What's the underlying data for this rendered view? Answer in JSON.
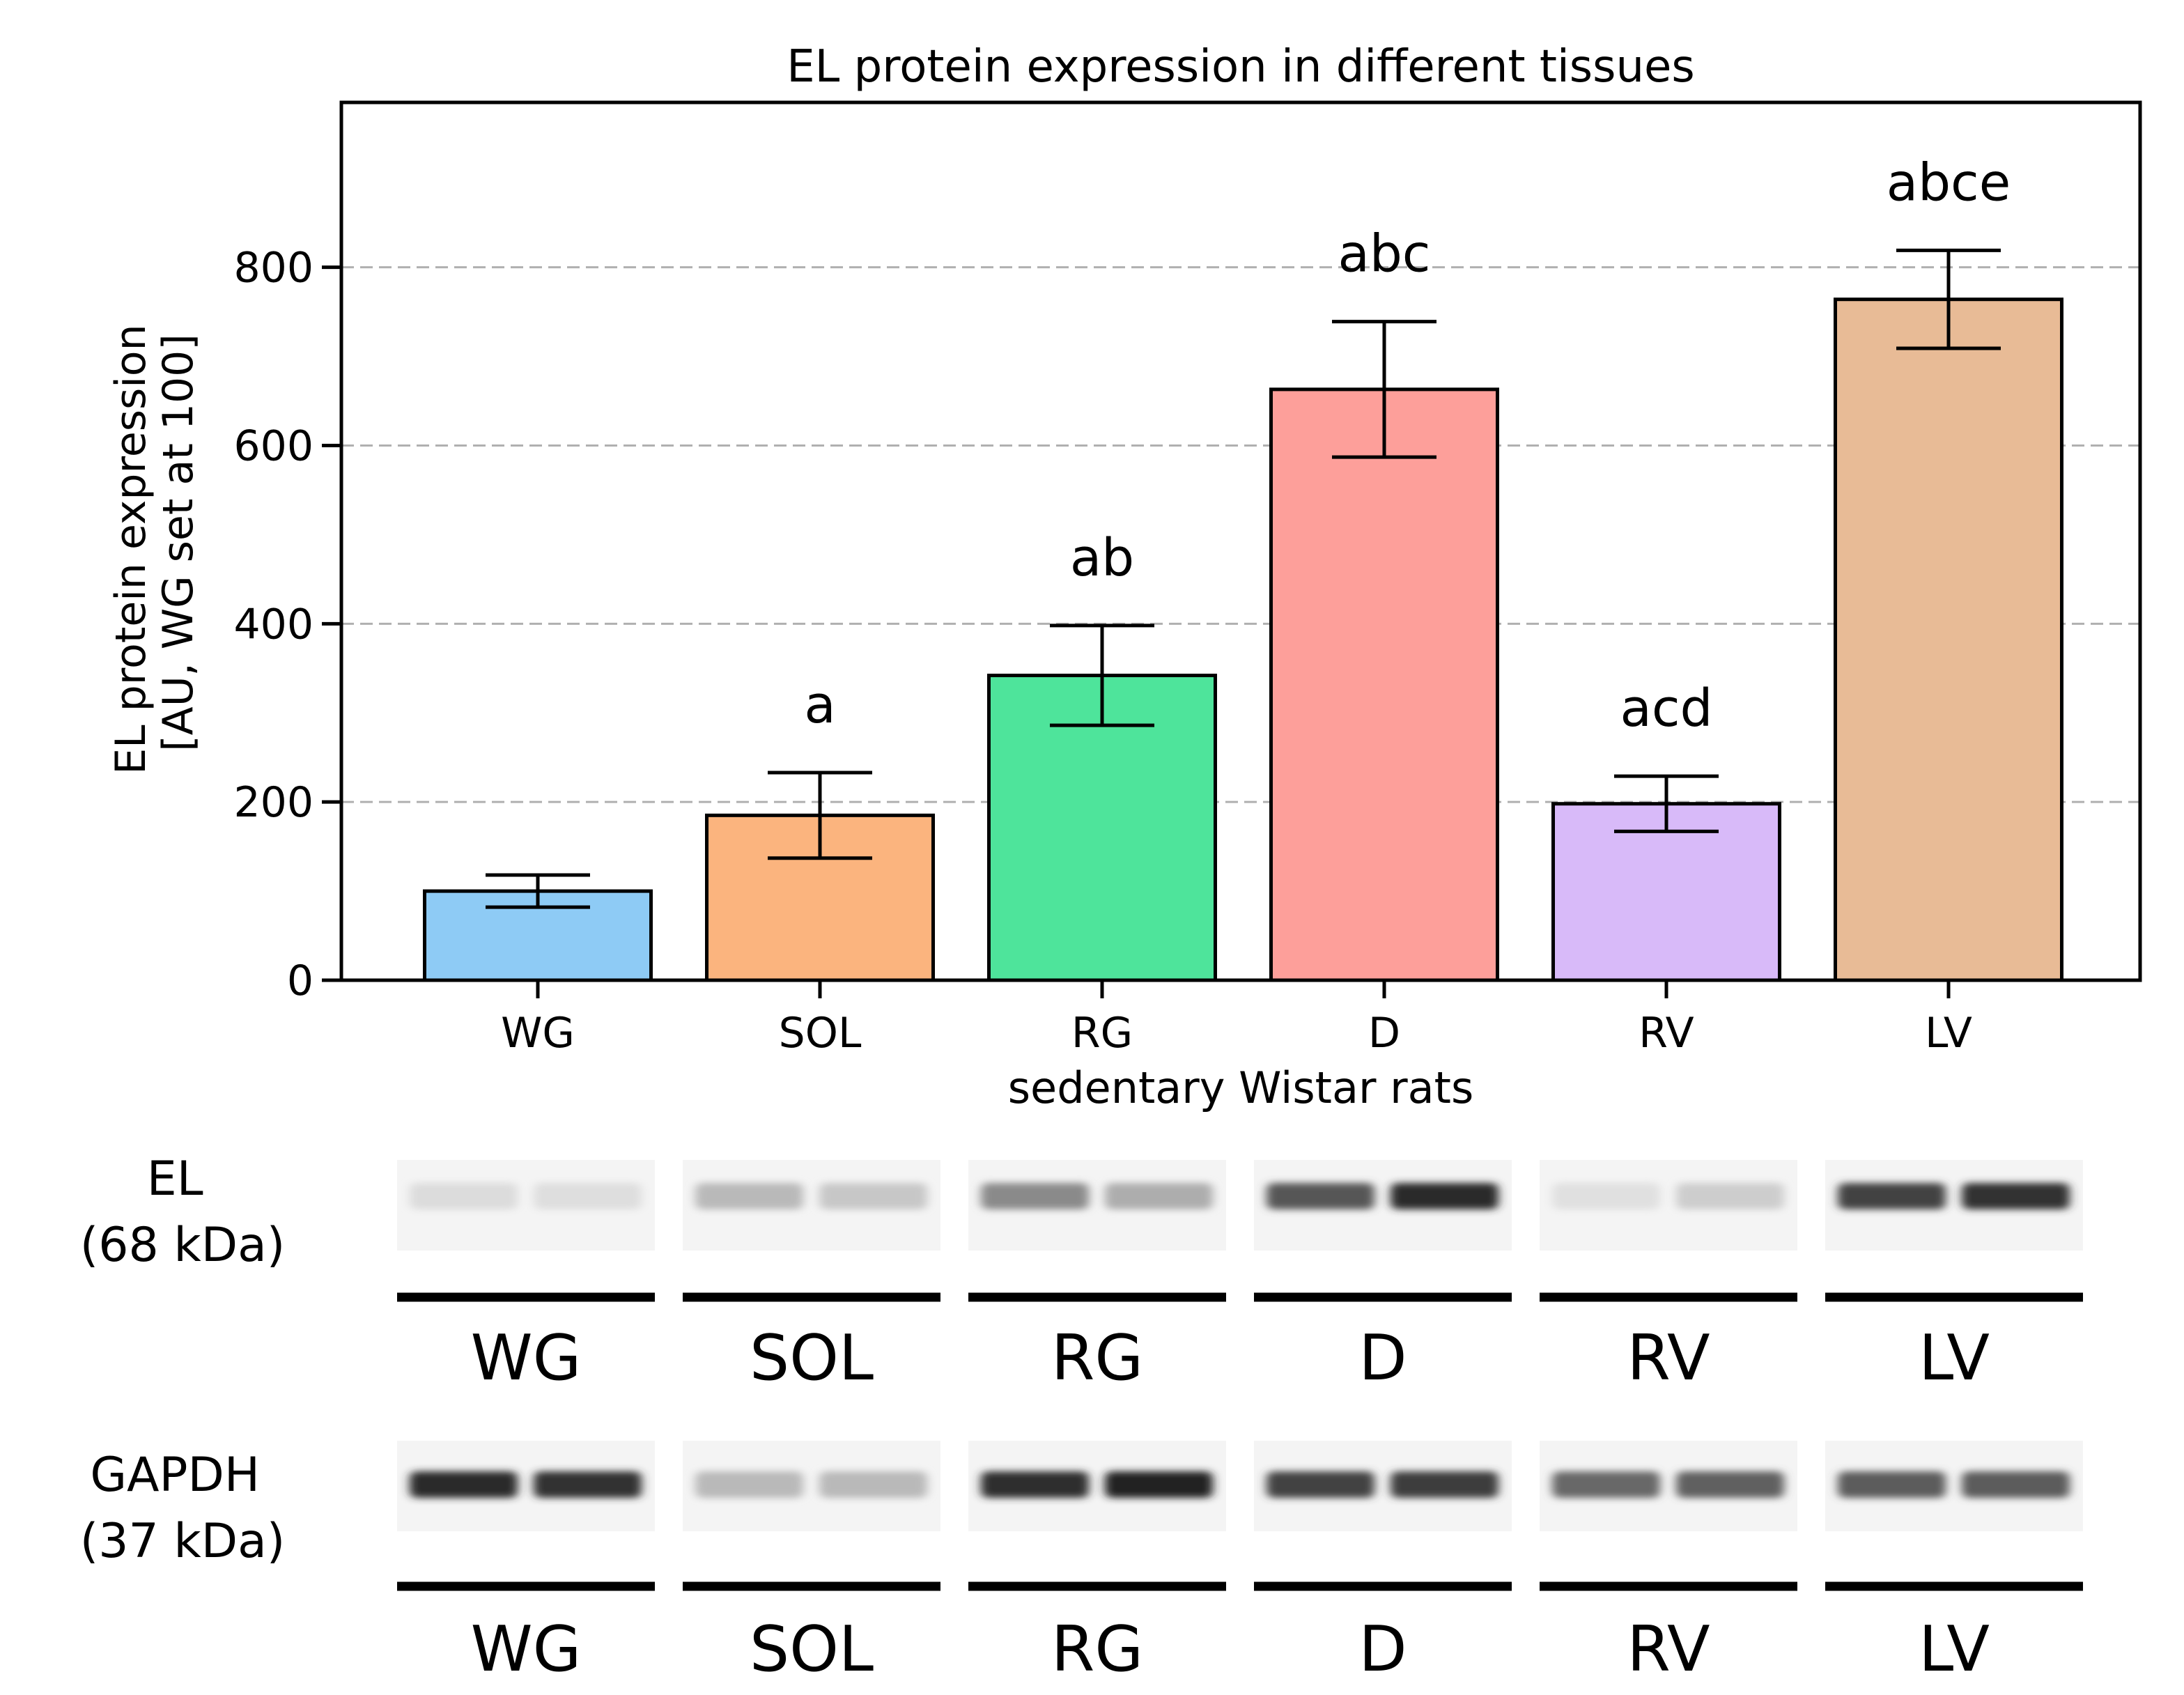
{
  "chart_data": {
    "type": "bar",
    "title": "EL protein expression in different tissues",
    "xlabel": "sedentary Wistar rats",
    "ylabel_lines": [
      "EL protein expression",
      "[AU, WG set at 100]"
    ],
    "ylim": [
      0,
      985
    ],
    "yticks": [
      0,
      200,
      400,
      600,
      800
    ],
    "grid": "horizontal dashed",
    "categories": [
      "WG",
      "SOL",
      "RG",
      "D",
      "RV",
      "LV"
    ],
    "values": [
      100,
      185,
      342,
      663,
      198,
      764
    ],
    "errors": [
      18,
      48,
      56,
      76,
      31,
      55
    ],
    "colors": [
      "#8ecbf5",
      "#fbb47e",
      "#4ee49b",
      "#fd9f9a",
      "#d8baf9",
      "#e8bb96"
    ],
    "annotations": [
      "",
      "a",
      "ab",
      "abc",
      "acd",
      "abce"
    ]
  },
  "blots": [
    {
      "name_lines": [
        "EL",
        "(68 kDa)"
      ],
      "lane_labels": [
        "WG",
        "SOL",
        "RG",
        "D",
        "RV",
        "LV"
      ],
      "band_intensities": [
        [
          0.05,
          0.04
        ],
        [
          0.22,
          0.15
        ],
        [
          0.45,
          0.28
        ],
        [
          0.7,
          0.92
        ],
        [
          0.03,
          0.12
        ],
        [
          0.8,
          0.88
        ]
      ]
    },
    {
      "name_lines": [
        "GAPDH",
        "(37 kDa)"
      ],
      "lane_labels": [
        "WG",
        "SOL",
        "RG",
        "D",
        "RV",
        "LV"
      ],
      "band_intensities": [
        [
          0.92,
          0.88
        ],
        [
          0.22,
          0.22
        ],
        [
          0.9,
          0.95
        ],
        [
          0.8,
          0.82
        ],
        [
          0.62,
          0.65
        ],
        [
          0.68,
          0.68
        ]
      ]
    }
  ]
}
